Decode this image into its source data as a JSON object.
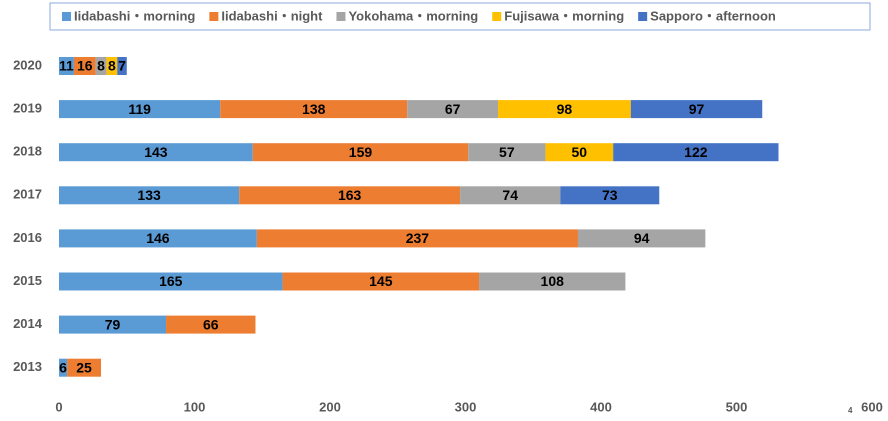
{
  "chart_data": {
    "type": "stacked-barh",
    "categories": [
      "2020",
      "2019",
      "2018",
      "2017",
      "2016",
      "2015",
      "2014",
      "2013"
    ],
    "series": [
      {
        "name": "Iidabashi・morning",
        "color": "#5b9bd5",
        "values": [
          11,
          119,
          143,
          133,
          146,
          165,
          79,
          6
        ]
      },
      {
        "name": "Iidabashi・night",
        "color": "#ed7d31",
        "values": [
          16,
          138,
          159,
          163,
          237,
          145,
          66,
          25
        ]
      },
      {
        "name": "Yokohama・morning",
        "color": "#a5a5a5",
        "values": [
          8,
          67,
          57,
          74,
          94,
          108,
          null,
          null
        ]
      },
      {
        "name": "Fujisawa・morning",
        "color": "#ffc000",
        "values": [
          8,
          98,
          50,
          null,
          null,
          null,
          null,
          null
        ]
      },
      {
        "name": "Sapporo・afternoon",
        "color": "#4472c4",
        "values": [
          7,
          97,
          122,
          73,
          null,
          null,
          null,
          null
        ]
      }
    ],
    "xlim": [
      0,
      600
    ],
    "xticks": [
      0,
      100,
      200,
      300,
      400,
      500,
      600
    ],
    "annotation": "4"
  }
}
